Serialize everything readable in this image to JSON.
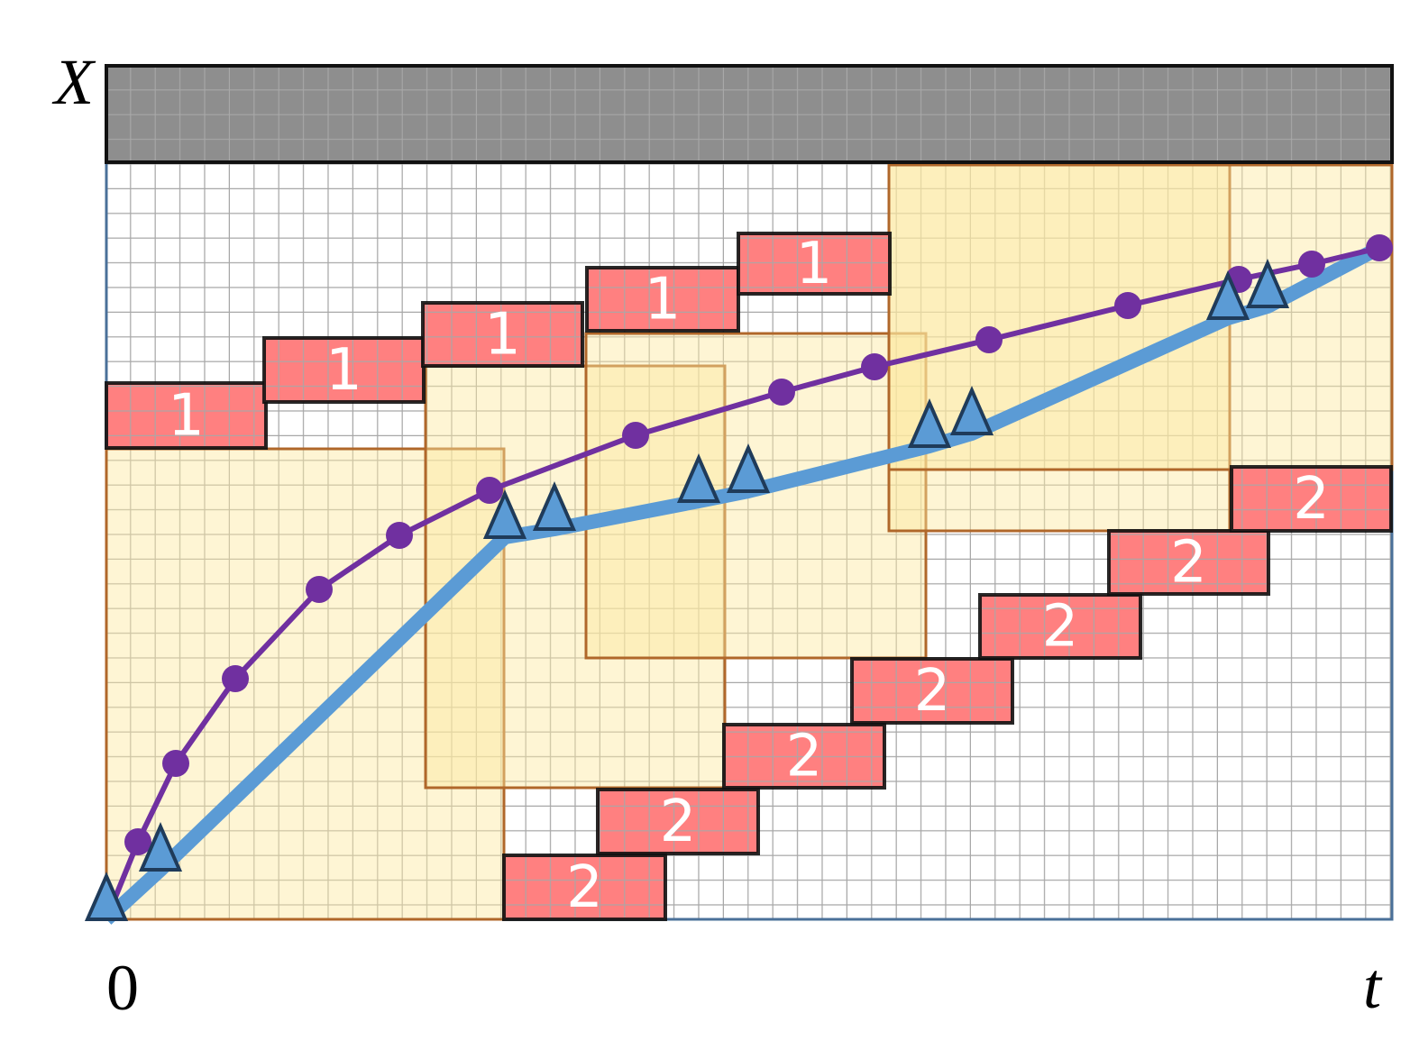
{
  "axis": {
    "y_label": "X",
    "origin": "0",
    "x_label": "t"
  },
  "blocks": {
    "top": [
      "1",
      "1",
      "1",
      "1",
      "1"
    ],
    "bottom": [
      "2",
      "2",
      "2",
      "2",
      "2",
      "2",
      "2"
    ]
  }
}
